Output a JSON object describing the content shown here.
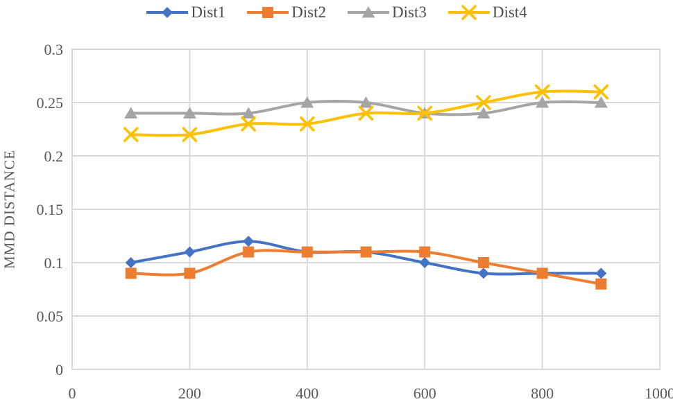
{
  "y_axis_title": "MMD DISTANCE",
  "colors": {
    "background": "#ffffff",
    "gridline": "#d9d9d9",
    "plot_border": "#d9d9d9",
    "axis_text": "#595959",
    "legend_text": "#4d4d4d"
  },
  "chart_data": {
    "type": "line",
    "title": "",
    "xlabel": "",
    "ylabel": "MMD DISTANCE",
    "x": [
      100,
      200,
      300,
      400,
      500,
      600,
      700,
      800,
      900
    ],
    "series": [
      {
        "name": "Dist1",
        "color": "#4472C4",
        "marker": "diamond",
        "values": [
          0.1,
          0.11,
          0.12,
          0.11,
          0.11,
          0.1,
          0.09,
          0.09,
          0.09
        ]
      },
      {
        "name": "Dist2",
        "color": "#ED7D31",
        "marker": "square",
        "values": [
          0.09,
          0.09,
          0.11,
          0.11,
          0.11,
          0.11,
          0.1,
          0.09,
          0.08
        ]
      },
      {
        "name": "Dist3",
        "color": "#A5A5A5",
        "marker": "triangle",
        "values": [
          0.24,
          0.24,
          0.24,
          0.25,
          0.25,
          0.24,
          0.24,
          0.25,
          0.25
        ]
      },
      {
        "name": "Dist4",
        "color": "#FFC000",
        "marker": "x",
        "values": [
          0.22,
          0.22,
          0.23,
          0.23,
          0.24,
          0.24,
          0.25,
          0.26,
          0.26
        ]
      }
    ],
    "xlim": [
      0,
      1000
    ],
    "ylim": [
      0,
      0.3
    ],
    "x_ticks": [
      0,
      200,
      400,
      600,
      800,
      1000
    ],
    "y_ticks": [
      0,
      0.05,
      0.1,
      0.15,
      0.2,
      0.25,
      0.3
    ],
    "grid": true,
    "smoothed": true,
    "legend_position": "top-center"
  }
}
